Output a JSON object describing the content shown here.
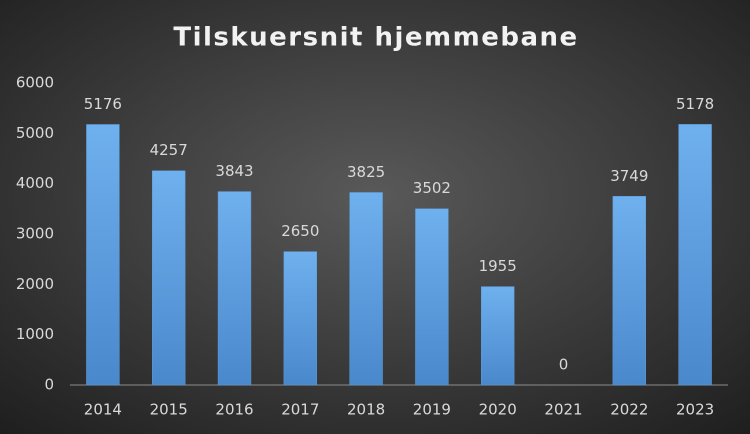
{
  "chart_data": {
    "type": "bar",
    "title": "Tilskuersnit hjemmebane",
    "categories": [
      "2014",
      "2015",
      "2016",
      "2017",
      "2018",
      "2019",
      "2020",
      "2021",
      "2022",
      "2023"
    ],
    "values": [
      5176,
      4257,
      3843,
      2650,
      3825,
      3502,
      1955,
      0,
      3749,
      5178
    ],
    "color": "#5b9bd5",
    "ylim": [
      0,
      6000
    ],
    "yticks": [
      0,
      1000,
      2000,
      3000,
      4000,
      5000,
      6000
    ],
    "grid": false
  }
}
